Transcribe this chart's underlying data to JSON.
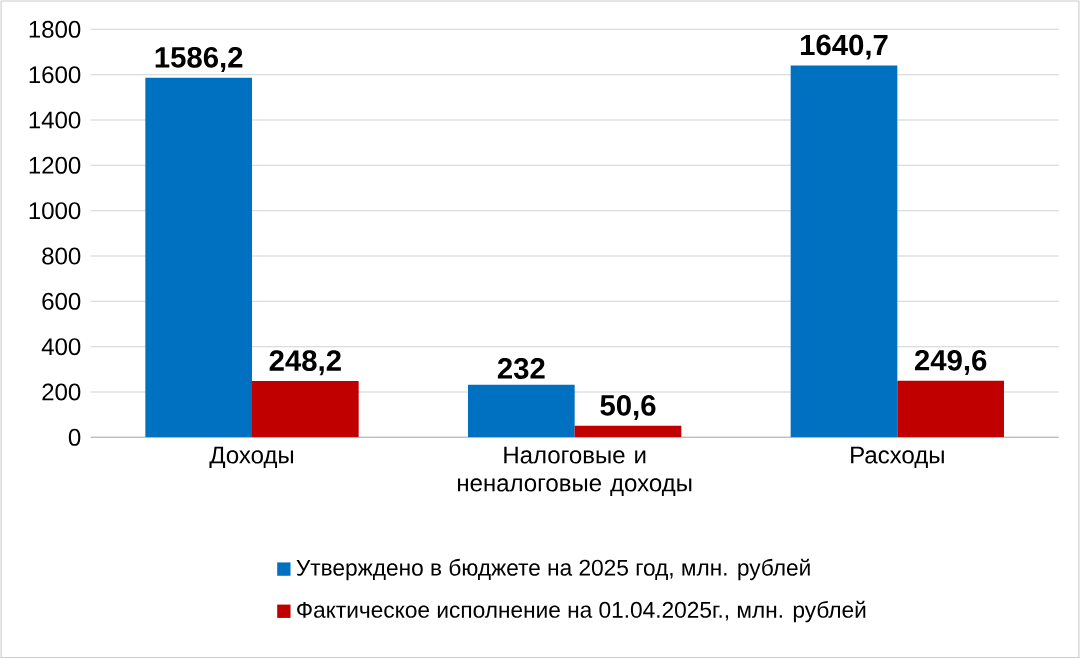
{
  "chart_data": {
    "type": "bar",
    "categories": [
      "Доходы",
      "Налоговые и неналоговые доходы",
      "Расходы"
    ],
    "series": [
      {
        "name": "Утверждено в бюджете на 2025 год, млн. рублей",
        "color": "#0070c0",
        "values": [
          1586.2,
          232,
          1640.7
        ],
        "value_labels": [
          "1586,2",
          "232",
          "1640,7"
        ]
      },
      {
        "name": "Фактическое исполнение на 01.04.2025г., млн. рублей",
        "color": "#c00000",
        "values": [
          248.2,
          50.6,
          249.6
        ],
        "value_labels": [
          "248,2",
          "50,6",
          "249,6"
        ]
      }
    ],
    "ylim": [
      0,
      1800
    ],
    "yticks": [
      0,
      200,
      400,
      600,
      800,
      1000,
      1200,
      1400,
      1600,
      1800
    ],
    "grid": "y",
    "legend": "bottom"
  }
}
